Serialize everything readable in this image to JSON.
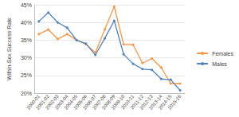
{
  "chart_data": {
    "type": "line",
    "y_label": "Within-Sex Success Rate",
    "categories": [
      "2000-01",
      "2001-02",
      "2002-03",
      "2003-04",
      "2004-05",
      "2005-06",
      "2006-07",
      "2007-08",
      "2008-09",
      "2009-10",
      "2010-11",
      "2011-12",
      "2012-13",
      "2013-14",
      "2014-15",
      "2015-16"
    ],
    "series": [
      {
        "name": "Females",
        "color": "#f79646",
        "marker": "circle",
        "values": [
          36.7,
          38,
          35.3,
          36.7,
          35,
          33.8,
          31.5,
          38,
          44.5,
          33.8,
          33.7,
          28.5,
          29.8,
          27.2,
          22.7,
          22.7
        ]
      },
      {
        "name": "Males",
        "color": "#4f81bd",
        "marker": "circle",
        "values": [
          40.3,
          42.8,
          40,
          38.5,
          35,
          34,
          30.8,
          35.5,
          40.5,
          31,
          28.3,
          26.8,
          26.6,
          24,
          23.8,
          20.8
        ]
      }
    ],
    "ylim": [
      20,
      45
    ],
    "yticks": [
      {
        "value": 20,
        "label": "20%"
      },
      {
        "value": 25,
        "label": "25%"
      },
      {
        "value": 30,
        "label": "30%"
      },
      {
        "value": 35,
        "label": "35%"
      },
      {
        "value": 40,
        "label": "40%"
      },
      {
        "value": 45,
        "label": "45%"
      }
    ],
    "grid": true,
    "legend": "right"
  }
}
